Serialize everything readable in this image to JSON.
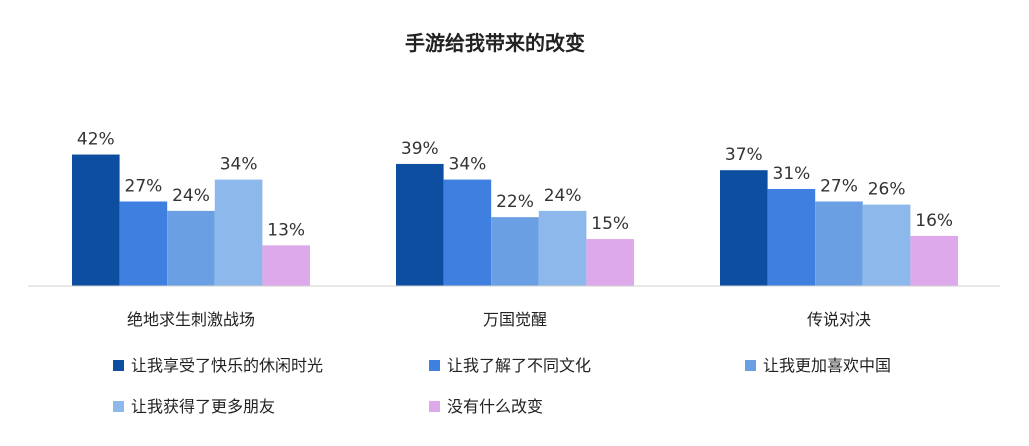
{
  "chart_data": {
    "type": "bar",
    "title": "手游给我带来的改变",
    "categories": [
      "绝地求生刺激战场",
      "万国觉醒",
      "传说对决"
    ],
    "series": [
      {
        "name": "让我享受了快乐的休闲时光",
        "values": [
          42,
          39,
          37
        ],
        "color": "#0D4EA0"
      },
      {
        "name": "让我了解了不同文化",
        "values": [
          27,
          34,
          31
        ],
        "color": "#3F7FE0"
      },
      {
        "name": "让我更加喜欢中国",
        "values": [
          24,
          22,
          27
        ],
        "color": "#6A9FE4"
      },
      {
        "name": "让我获得了更多朋友",
        "values": [
          34,
          24,
          26
        ],
        "color": "#8DB8EC"
      },
      {
        "name": "没有什么改变",
        "values": [
          13,
          15,
          16
        ],
        "color": "#DEA9EA"
      }
    ],
    "value_suffix": "%",
    "ylim": [
      0,
      100
    ],
    "grid": false,
    "legend_position": "bottom"
  }
}
